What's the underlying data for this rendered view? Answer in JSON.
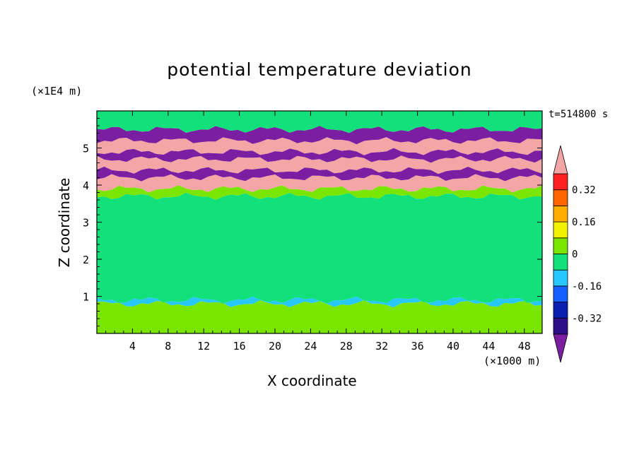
{
  "chart_data": {
    "type": "heatmap",
    "title": "potential temperature deviation",
    "xlabel": "X coordinate",
    "ylabel": "Z coordinate",
    "x_unit": "(×1000 m)",
    "y_unit": "(×1E4 m)",
    "time_label": "t=514800 s",
    "xlim": [
      0,
      50
    ],
    "ylim": [
      0,
      6
    ],
    "x_ticks": [
      "4",
      "8",
      "12",
      "16",
      "20",
      "24",
      "28",
      "32",
      "36",
      "40",
      "44",
      "48"
    ],
    "x_tick_values": [
      4,
      8,
      12,
      16,
      20,
      24,
      28,
      32,
      36,
      40,
      44,
      48
    ],
    "y_ticks": [
      "1",
      "2",
      "3",
      "4",
      "5"
    ],
    "y_tick_values": [
      1,
      2,
      3,
      4,
      5
    ],
    "colorbar": {
      "levels": [
        -0.48,
        -0.4,
        -0.32,
        -0.24,
        -0.16,
        -0.08,
        0,
        0.08,
        0.16,
        0.24,
        0.32,
        0.4
      ],
      "labels": [
        "0.32",
        "0.16",
        "0",
        "-0.16",
        "-0.32"
      ],
      "label_values": [
        0.32,
        0.16,
        0,
        -0.16,
        -0.32
      ],
      "colors": [
        "#7a1fa2",
        "#2e0f8a",
        "#0a1fb0",
        "#1560ff",
        "#26c8ff",
        "#12e07a",
        "#7ae600",
        "#f2f200",
        "#ffae00",
        "#ff6600",
        "#ff2020",
        "#f4a6a6"
      ]
    },
    "bands": [
      {
        "z": [
          0.0,
          0.8
        ],
        "fill": "#7ae600"
      },
      {
        "z": [
          0.8,
          0.9
        ],
        "fill": "#26c8ff"
      },
      {
        "z": [
          0.9,
          3.7
        ],
        "fill": "#12e07a"
      },
      {
        "z": [
          3.7,
          3.9
        ],
        "fill": "#7ae600"
      },
      {
        "z": [
          3.9,
          4.2
        ],
        "fill": "#f4a6a6"
      },
      {
        "z": [
          4.2,
          4.4
        ],
        "fill": "#7a1fa2"
      },
      {
        "z": [
          4.4,
          4.7
        ],
        "fill": "#f4a6a6"
      },
      {
        "z": [
          4.7,
          4.9
        ],
        "fill": "#7a1fa2"
      },
      {
        "z": [
          4.9,
          5.2
        ],
        "fill": "#f4a6a6"
      },
      {
        "z": [
          5.2,
          5.5
        ],
        "fill": "#7a1fa2"
      },
      {
        "z": [
          5.5,
          6.0
        ],
        "fill": "#12e07a"
      }
    ]
  }
}
